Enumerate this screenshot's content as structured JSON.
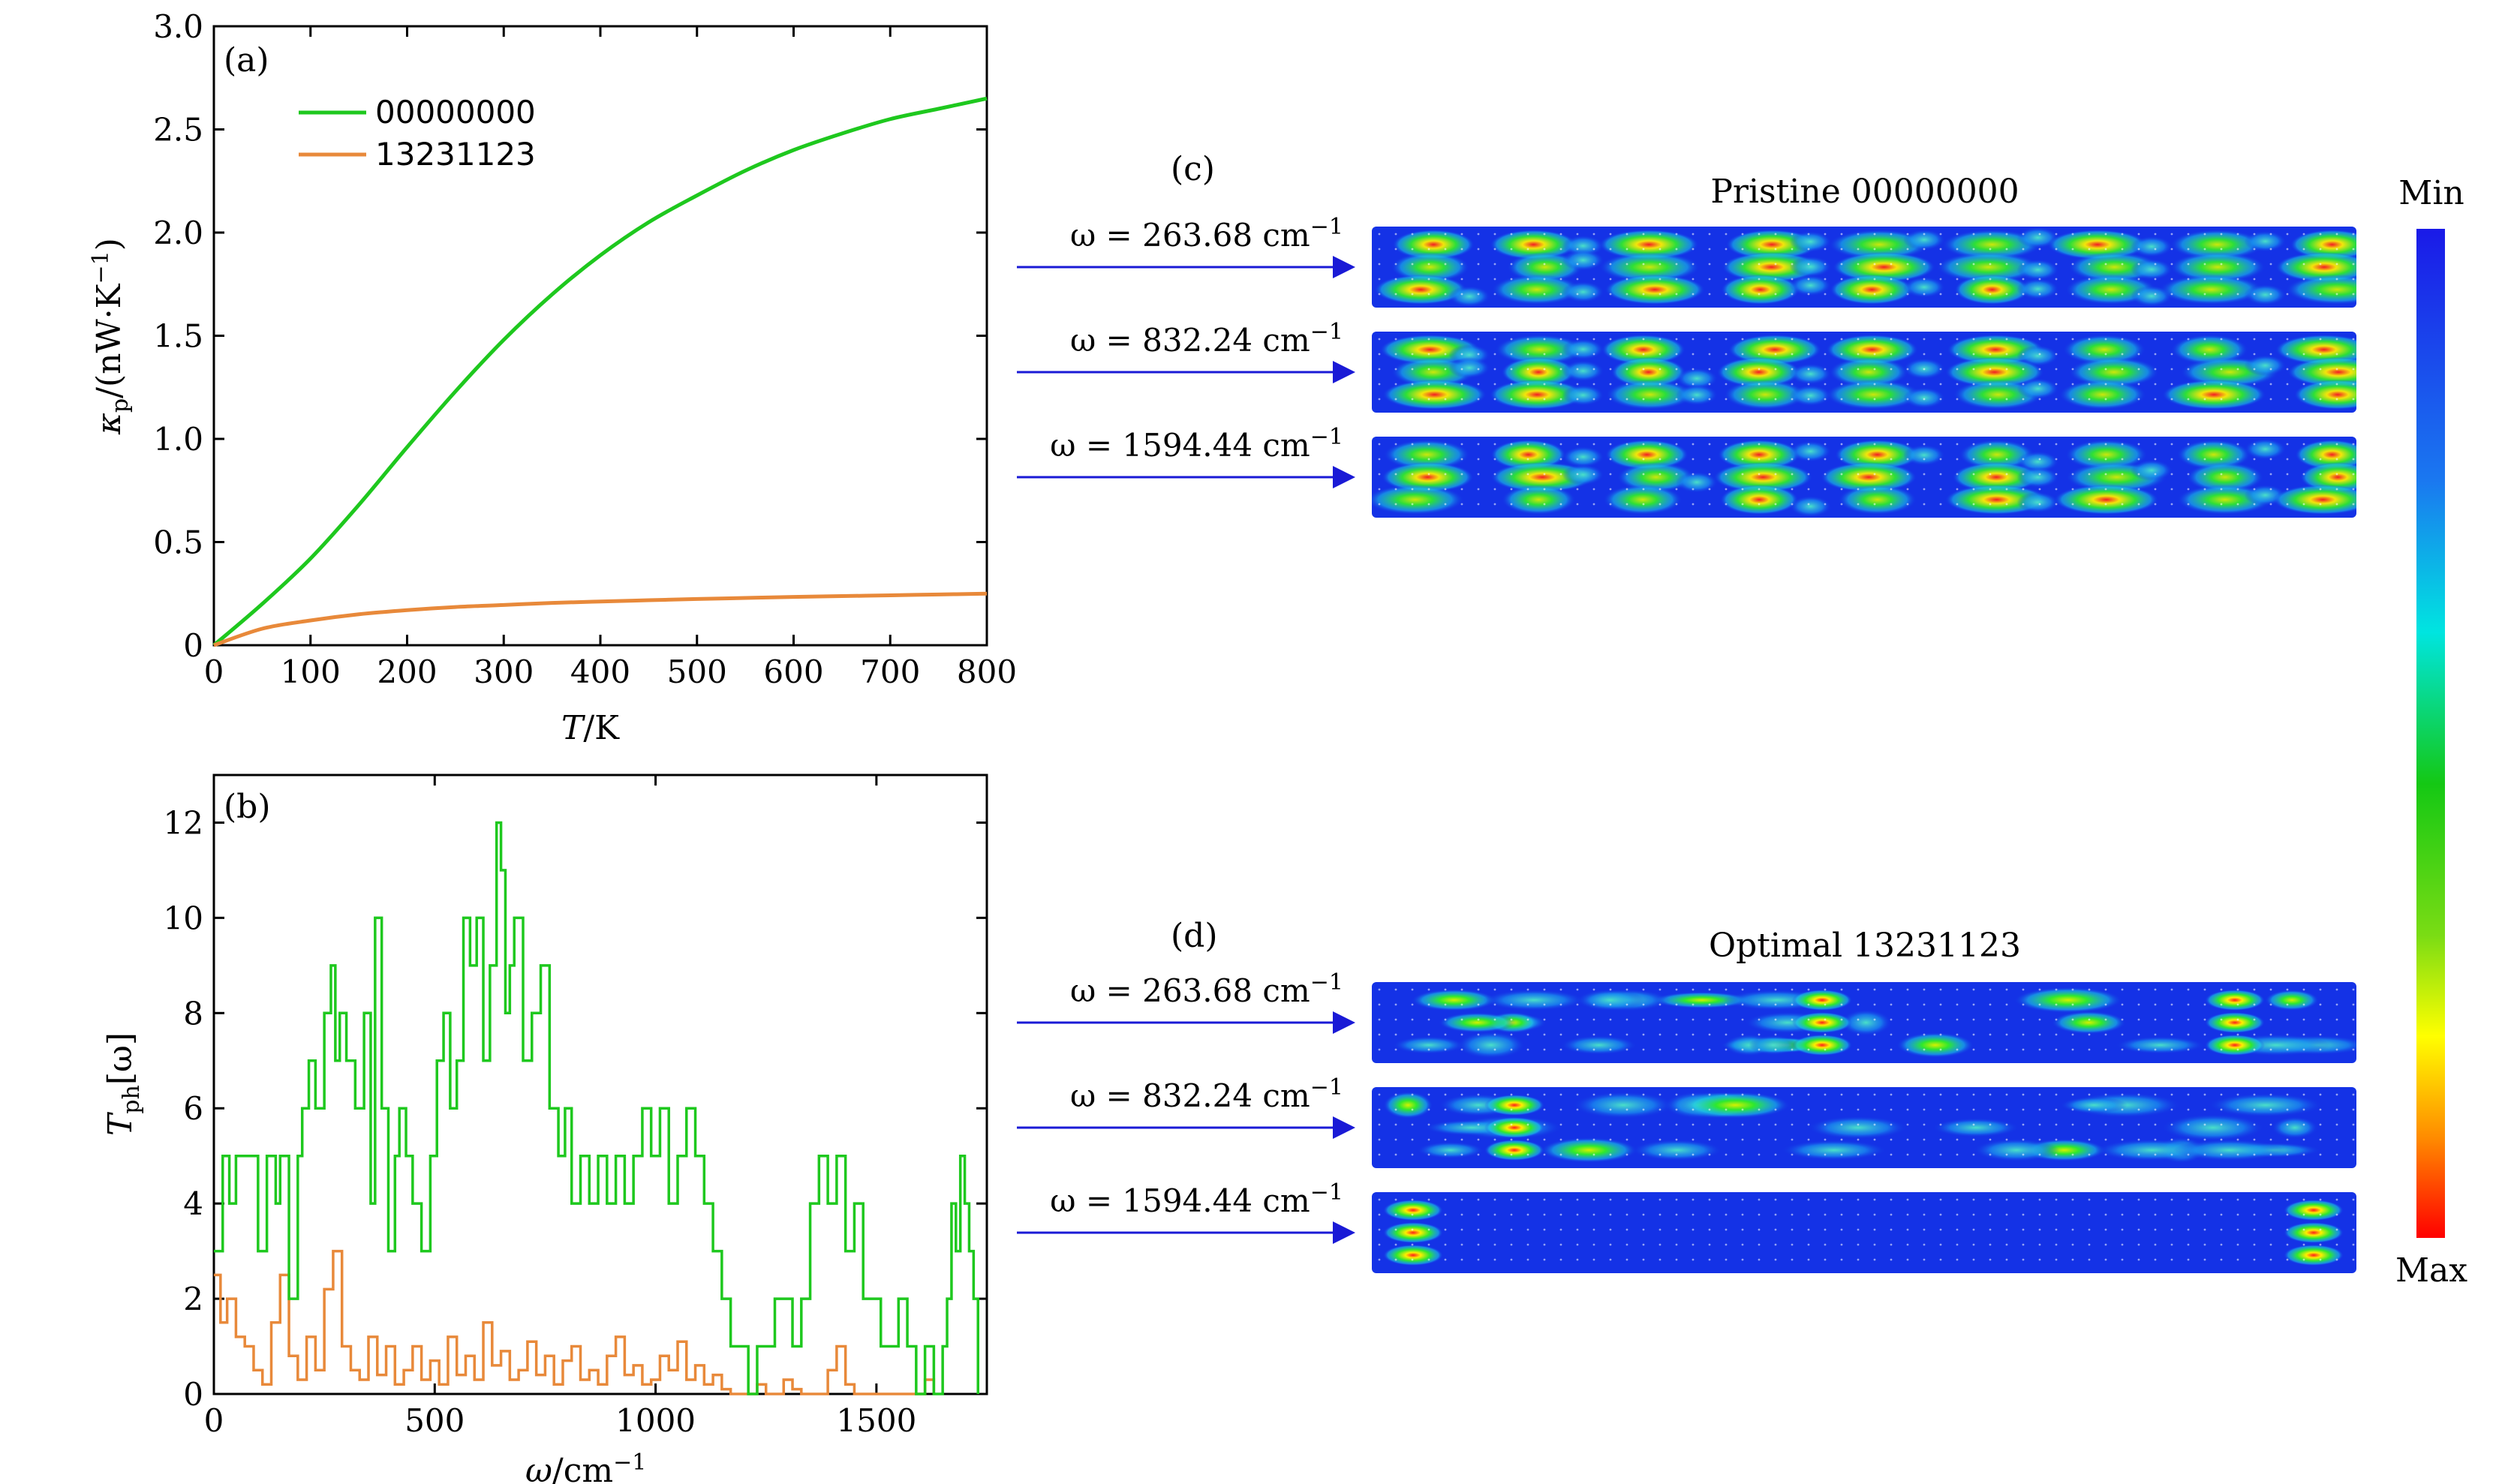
{
  "panel_a": {
    "label": "(a)",
    "xlabel_sym": "T",
    "xlabel_rest": "/K",
    "ylabel_kappa": "κ",
    "ylabel_sub": "p",
    "ylabel_rest": "/(nW·K",
    "ylabel_sup": "−1",
    "ylabel_close": ")",
    "xticks": [
      "0",
      "100",
      "200",
      "300",
      "400",
      "500",
      "600",
      "700",
      "800"
    ],
    "yticks": [
      "0",
      "0.5",
      "1.0",
      "1.5",
      "2.0",
      "2.5",
      "3.0"
    ]
  },
  "panel_b": {
    "label": "(b)",
    "xlabel_sym": "ω",
    "xlabel_rest": "/cm",
    "xlabel_sup": "−1",
    "ylabel_main": "T",
    "ylabel_sub": "ph",
    "ylabel_rest": "[ω]",
    "xticks": [
      "0",
      "500",
      "1000",
      "1500"
    ],
    "yticks": [
      "0",
      "2",
      "4",
      "6",
      "8",
      "10",
      "12"
    ]
  },
  "panel_c": {
    "label": "(c)",
    "title": "Pristine 00000000",
    "rows": [
      {
        "omega": "ω = 263.68 cm",
        "sup": "−1"
      },
      {
        "omega": "ω = 832.24 cm",
        "sup": "−1"
      },
      {
        "omega": "ω = 1594.44 cm",
        "sup": "−1"
      }
    ]
  },
  "panel_d": {
    "label": "(d)",
    "title": "Optimal 13231123",
    "rows": [
      {
        "omega": "ω = 263.68 cm",
        "sup": "−1"
      },
      {
        "omega": "ω = 832.24 cm",
        "sup": "−1"
      },
      {
        "omega": "ω = 1594.44 cm",
        "sup": "−1"
      }
    ]
  },
  "colorbar": {
    "top_label": "Min",
    "bottom_label": "Max"
  },
  "colors": {
    "green": "#1ec81e",
    "orange": "#e8893a",
    "arrow": "#1a1ad6",
    "map_bg": "#1432e6"
  },
  "chart_data": [
    {
      "type": "line",
      "panel": "a",
      "title": "",
      "xlabel": "T/K",
      "ylabel": "κp/(nW·K−1)",
      "xlim": [
        0,
        800
      ],
      "ylim": [
        0,
        3.0
      ],
      "legend_position": "top-left",
      "x": [
        0,
        50,
        100,
        150,
        200,
        250,
        300,
        350,
        400,
        450,
        500,
        550,
        600,
        650,
        700,
        750,
        800
      ],
      "series": [
        {
          "name": "00000000",
          "color": "green",
          "values": [
            0,
            0.2,
            0.42,
            0.68,
            0.96,
            1.23,
            1.48,
            1.7,
            1.89,
            2.05,
            2.18,
            2.3,
            2.4,
            2.48,
            2.55,
            2.6,
            2.65
          ]
        },
        {
          "name": "13231123",
          "color": "orange",
          "values": [
            0,
            0.08,
            0.12,
            0.15,
            0.17,
            0.185,
            0.195,
            0.205,
            0.212,
            0.218,
            0.224,
            0.229,
            0.234,
            0.238,
            0.242,
            0.246,
            0.25
          ]
        }
      ]
    },
    {
      "type": "line",
      "panel": "b",
      "title": "",
      "xlabel": "ω/cm−1",
      "ylabel": "Tph[ω]",
      "xlim": [
        0,
        1750
      ],
      "ylim": [
        0,
        13
      ],
      "series": [
        {
          "name": "00000000",
          "color": "green",
          "x": [
            0,
            20,
            35,
            50,
            80,
            100,
            120,
            140,
            150,
            170,
            190,
            200,
            215,
            230,
            250,
            265,
            275,
            285,
            300,
            320,
            340,
            355,
            365,
            380,
            395,
            410,
            420,
            435,
            450,
            470,
            490,
            505,
            520,
            535,
            550,
            565,
            580,
            595,
            610,
            625,
            640,
            650,
            660,
            670,
            680,
            700,
            720,
            740,
            760,
            780,
            795,
            810,
            830,
            850,
            870,
            890,
            910,
            930,
            950,
            970,
            990,
            1010,
            1030,
            1050,
            1070,
            1090,
            1110,
            1130,
            1150,
            1170,
            1190,
            1210,
            1230,
            1250,
            1270,
            1290,
            1310,
            1330,
            1350,
            1370,
            1390,
            1410,
            1430,
            1450,
            1470,
            1490,
            1510,
            1530,
            1550,
            1570,
            1590,
            1610,
            1630,
            1650,
            1660,
            1670,
            1680,
            1690,
            1700,
            1710,
            1720,
            1730
          ],
          "values": [
            3,
            5,
            4,
            5,
            5,
            3,
            5,
            4,
            5,
            2,
            5,
            6,
            7,
            6,
            8,
            9,
            7,
            8,
            7,
            6,
            8,
            4,
            10,
            6,
            3,
            5,
            6,
            5,
            4,
            3,
            5,
            7,
            8,
            6,
            7,
            10,
            9,
            10,
            7,
            9,
            12,
            11,
            8,
            9,
            10,
            7,
            8,
            9,
            6,
            5,
            6,
            4,
            5,
            4,
            5,
            4,
            5,
            4,
            5,
            6,
            5,
            6,
            4,
            5,
            6,
            5,
            4,
            3,
            2,
            1,
            1,
            0,
            1,
            1,
            2,
            2,
            1,
            2,
            4,
            5,
            4,
            5,
            3,
            4,
            2,
            2,
            1,
            1,
            2,
            1,
            0,
            1,
            0,
            1,
            2,
            4,
            3,
            5,
            4,
            3,
            2,
            0
          ]
        },
        {
          "name": "13231123",
          "color": "orange",
          "x": [
            0,
            15,
            30,
            50,
            70,
            90,
            110,
            130,
            150,
            170,
            190,
            210,
            230,
            250,
            270,
            290,
            310,
            330,
            350,
            370,
            390,
            410,
            430,
            450,
            470,
            490,
            510,
            530,
            550,
            570,
            590,
            610,
            630,
            650,
            670,
            690,
            710,
            730,
            750,
            770,
            790,
            810,
            830,
            850,
            870,
            890,
            910,
            930,
            950,
            970,
            990,
            1010,
            1030,
            1050,
            1070,
            1090,
            1110,
            1130,
            1150,
            1170,
            1190,
            1210,
            1230,
            1250,
            1270,
            1290,
            1310,
            1330,
            1350,
            1370,
            1390,
            1410,
            1430,
            1450,
            1470,
            1490,
            1510,
            1530,
            1550,
            1570,
            1590,
            1610,
            1630
          ],
          "values": [
            2.5,
            1.5,
            2.0,
            1.2,
            1.0,
            0.5,
            0.2,
            1.5,
            2.5,
            0.8,
            0.3,
            1.2,
            0.5,
            2.2,
            3.0,
            1.0,
            0.5,
            0.3,
            1.2,
            0.4,
            1.0,
            0.2,
            0.5,
            1.0,
            0.3,
            0.7,
            0.2,
            1.2,
            0.4,
            0.8,
            0.3,
            1.5,
            0.6,
            0.9,
            0.3,
            0.5,
            1.1,
            0.4,
            0.8,
            0.2,
            0.7,
            1.0,
            0.3,
            0.5,
            0.2,
            0.8,
            1.2,
            0.4,
            0.6,
            0.2,
            0.3,
            0.8,
            0.5,
            1.1,
            0.3,
            0.6,
            0.2,
            0.4,
            0.1,
            0,
            0,
            0,
            0.2,
            0,
            0,
            0.3,
            0.1,
            0,
            0,
            0,
            0.5,
            1.0,
            0.2,
            0,
            0,
            0,
            0,
            0,
            0,
            0,
            0,
            0.3,
            0
          ]
        }
      ]
    }
  ]
}
